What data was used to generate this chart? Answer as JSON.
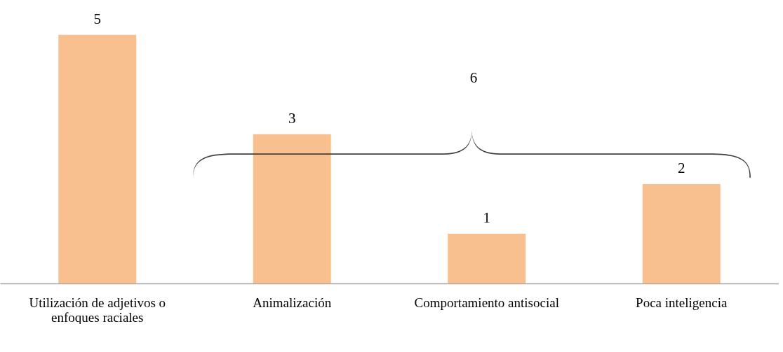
{
  "chart_data": {
    "type": "bar",
    "categories": [
      "Utilización de adjetivos o enfoques raciales",
      "Animalización",
      "Comportamiento antisocial",
      "Poca inteligencia"
    ],
    "values": [
      5,
      3,
      1,
      2
    ],
    "color": "#f9c08f",
    "data_labels": true,
    "grid": false,
    "tick_labels": "x",
    "annotations": [
      "6"
    ]
  }
}
